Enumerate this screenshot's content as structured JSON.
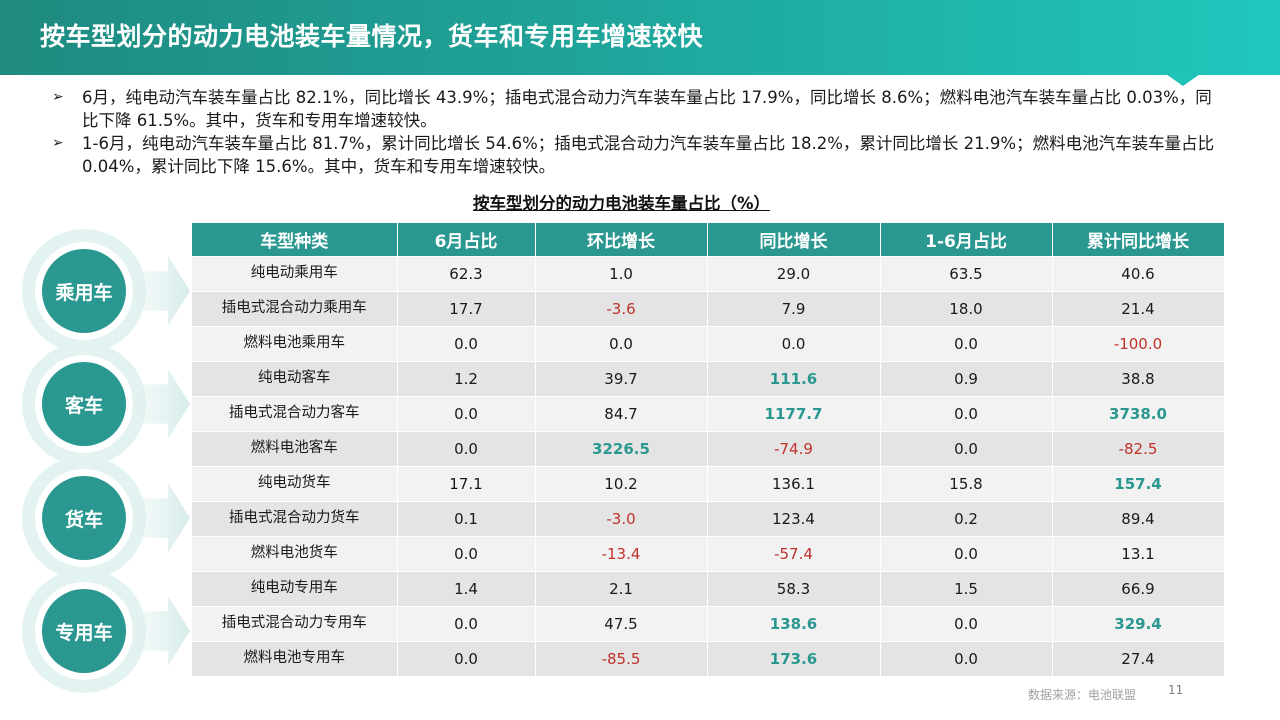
{
  "title": "按车型划分的动力电池装车量情况，货车和专用车增速较快",
  "bullets": [
    "6月，纯电动汽车装车量占比 82.1%，同比增长 43.9%；插电式混合动力汽车装车量占比 17.9%，同比增长 8.6%；燃料电池汽车装车量占比 0.03%，同比下降 61.5%。其中，货车和专用车增速较快。",
    "1-6月，纯电动汽车装车量占比 81.7%，累计同比增长 54.6%；插电式混合动力汽车装车量占比 18.2%，累计同比增长 21.9%；燃料电池汽车装车量占比 0.04%，累计同比下降 15.6%。其中，货车和专用车增速较快。"
  ],
  "chart_title": "按车型划分的动力电池装车量占比（%）",
  "categories": [
    "乘用车",
    "客车",
    "货车",
    "专用车"
  ],
  "table": {
    "headers": [
      "车型种类",
      "6月占比",
      "环比增长",
      "同比增长",
      "1-6月占比",
      "累计同比增长"
    ],
    "rows": [
      [
        "纯电动乘用车",
        "62.3",
        "1.0",
        "29.0",
        "63.5",
        "40.6"
      ],
      [
        "插电式混合动力乘用车",
        "17.7",
        "-3.6",
        "7.9",
        "18.0",
        "21.4"
      ],
      [
        "燃料电池乘用车",
        "0.0",
        "0.0",
        "0.0",
        "0.0",
        "-100.0"
      ],
      [
        "纯电动客车",
        "1.2",
        "39.7",
        "111.6",
        "0.9",
        "38.8"
      ],
      [
        "插电式混合动力客车",
        "0.0",
        "84.7",
        "1177.7",
        "0.0",
        "3738.0"
      ],
      [
        "燃料电池客车",
        "0.0",
        "3226.5",
        "-74.9",
        "0.0",
        "-82.5"
      ],
      [
        "纯电动货车",
        "17.1",
        "10.2",
        "136.1",
        "15.8",
        "157.4"
      ],
      [
        "插电式混合动力货车",
        "0.1",
        "-3.0",
        "123.4",
        "0.2",
        "89.4"
      ],
      [
        "燃料电池货车",
        "0.0",
        "-13.4",
        "-57.4",
        "0.0",
        "13.1"
      ],
      [
        "纯电动专用车",
        "1.4",
        "2.1",
        "58.3",
        "1.5",
        "66.9"
      ],
      [
        "插电式混合动力专用车",
        "0.0",
        "47.5",
        "138.6",
        "0.0",
        "329.4"
      ],
      [
        "燃料电池专用车",
        "0.0",
        "-85.5",
        "173.6",
        "0.0",
        "27.4"
      ]
    ],
    "highlighted_cells": [
      [
        3,
        3
      ],
      [
        4,
        3
      ],
      [
        4,
        5
      ],
      [
        5,
        2
      ],
      [
        6,
        5
      ],
      [
        10,
        3
      ],
      [
        10,
        5
      ],
      [
        11,
        3
      ]
    ]
  },
  "colors": {
    "accent": "#2a9890",
    "negative": "#c0312b",
    "header_light": "#21c7bd"
  },
  "footer": {
    "source": "数据来源：电池联盟",
    "page": "11"
  }
}
